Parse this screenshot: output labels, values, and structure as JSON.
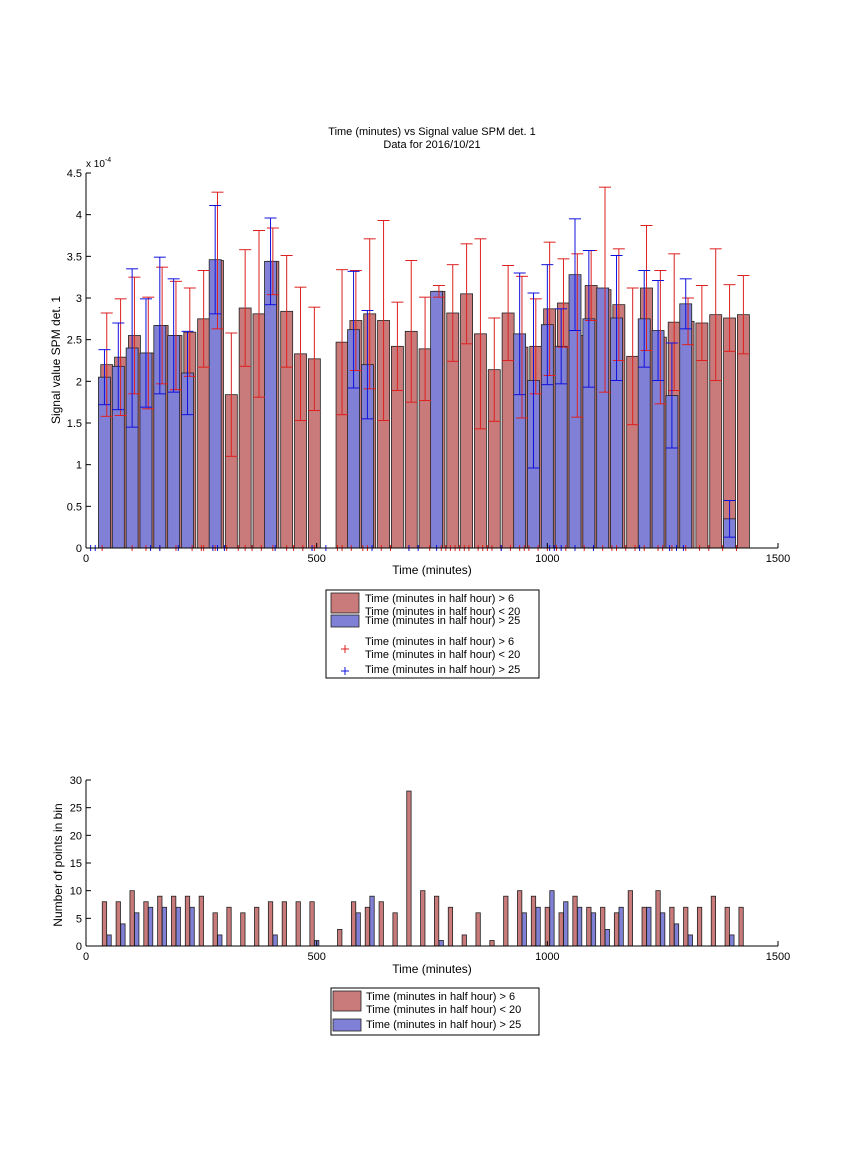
{
  "colors": {
    "red": "#c97a7a",
    "blue": "#8080d6",
    "red_err": "#dd2020",
    "blue_err": "#1010dd"
  },
  "chart_data": [
    {
      "type": "bar",
      "title": "Time (minutes) vs Signal value SPM det. 1",
      "subtitle": "Data for 2016/10/21",
      "xlabel": "Time (minutes)",
      "ylabel": "Signal value SPM det. 1",
      "exponent_label": "x 10",
      "exponent_power": "-4",
      "xlim": [
        0,
        1500
      ],
      "ylim": [
        0,
        4.5
      ],
      "y_scale_factor": 0.0001,
      "xticks": [
        "0",
        "500",
        "1000",
        "1500"
      ],
      "yticks": [
        "0",
        "0.5",
        "1",
        "1.5",
        "2",
        "2.5",
        "3",
        "3.5",
        "4",
        "4.5"
      ],
      "series": [
        {
          "name": "Time (minutes in half hour) > 6 Time (minutes in half hour) < 20",
          "color": "#c97a7a",
          "bars": [
            {
              "x": 45,
              "y": 2.2,
              "err": 0.62
            },
            {
              "x": 75,
              "y": 2.29,
              "err": 0.7
            },
            {
              "x": 105,
              "y": 2.55,
              "err": 0.7
            },
            {
              "x": 135,
              "y": 2.34,
              "err": 0.67
            },
            {
              "x": 165,
              "y": 2.67,
              "err": 0.7
            },
            {
              "x": 195,
              "y": 2.55,
              "err": 0.65
            },
            {
              "x": 225,
              "y": 2.59,
              "err": 0.53
            },
            {
              "x": 255,
              "y": 2.75,
              "err": 0.58
            },
            {
              "x": 285,
              "y": 3.45,
              "err": 0.82
            },
            {
              "x": 315,
              "y": 1.84,
              "err": 0.74
            },
            {
              "x": 345,
              "y": 2.88,
              "err": 0.7
            },
            {
              "x": 375,
              "y": 2.81,
              "err": 1.0
            },
            {
              "x": 405,
              "y": 3.44,
              "err": 0.4
            },
            {
              "x": 435,
              "y": 2.84,
              "err": 0.67
            },
            {
              "x": 465,
              "y": 2.33,
              "err": 0.8
            },
            {
              "x": 495,
              "y": 2.27,
              "err": 0.62
            },
            {
              "x": 555,
              "y": 2.47,
              "err": 0.87
            },
            {
              "x": 585,
              "y": 2.73,
              "err": 0.6
            },
            {
              "x": 615,
              "y": 2.81,
              "err": 0.9
            },
            {
              "x": 645,
              "y": 2.73,
              "err": 1.2
            },
            {
              "x": 675,
              "y": 2.42,
              "err": 0.53
            },
            {
              "x": 705,
              "y": 2.6,
              "err": 0.85
            },
            {
              "x": 735,
              "y": 2.39,
              "err": 0.62
            },
            {
              "x": 765,
              "y": 3.08,
              "err": 0.07
            },
            {
              "x": 795,
              "y": 2.82,
              "err": 0.58
            },
            {
              "x": 825,
              "y": 3.05,
              "err": 0.6
            },
            {
              "x": 855,
              "y": 2.57,
              "err": 1.14
            },
            {
              "x": 885,
              "y": 2.14,
              "err": 0.62
            },
            {
              "x": 915,
              "y": 2.82,
              "err": 0.57
            },
            {
              "x": 945,
              "y": 2.41,
              "err": 0.85
            },
            {
              "x": 975,
              "y": 2.42,
              "err": 0.57
            },
            {
              "x": 1005,
              "y": 2.87,
              "err": 0.8
            },
            {
              "x": 1035,
              "y": 2.94,
              "err": 0.53
            },
            {
              "x": 1065,
              "y": 2.55,
              "err": 0.98
            },
            {
              "x": 1095,
              "y": 3.15,
              "err": 0.42
            },
            {
              "x": 1125,
              "y": 3.1,
              "err": 1.23
            },
            {
              "x": 1155,
              "y": 2.92,
              "err": 0.67
            },
            {
              "x": 1185,
              "y": 2.3,
              "err": 0.82
            },
            {
              "x": 1215,
              "y": 3.12,
              "err": 0.75
            },
            {
              "x": 1245,
              "y": 2.53,
              "err": 0.8
            },
            {
              "x": 1275,
              "y": 2.71,
              "err": 0.82
            },
            {
              "x": 1305,
              "y": 2.72,
              "err": 0.28
            },
            {
              "x": 1335,
              "y": 2.7,
              "err": 0.45
            },
            {
              "x": 1365,
              "y": 2.8,
              "err": 0.79
            },
            {
              "x": 1395,
              "y": 2.76,
              "err": 0.4
            },
            {
              "x": 1425,
              "y": 2.8,
              "err": 0.47
            }
          ]
        },
        {
          "name": "Time (minutes in half hour) > 25",
          "color": "#8080d6",
          "bars": [
            {
              "x": 40,
              "y": 2.05,
              "err": 0.33
            },
            {
              "x": 70,
              "y": 2.18,
              "err": 0.52
            },
            {
              "x": 100,
              "y": 2.4,
              "err": 0.95
            },
            {
              "x": 130,
              "y": 2.34,
              "err": 0.65
            },
            {
              "x": 160,
              "y": 2.67,
              "err": 0.82
            },
            {
              "x": 190,
              "y": 2.55,
              "err": 0.68
            },
            {
              "x": 220,
              "y": 2.1,
              "err": 0.5
            },
            {
              "x": 280,
              "y": 3.46,
              "err": 0.65
            },
            {
              "x": 400,
              "y": 3.44,
              "err": 0.52
            },
            {
              "x": 580,
              "y": 2.62,
              "err": 0.7
            },
            {
              "x": 610,
              "y": 2.2,
              "err": 0.65
            },
            {
              "x": 760,
              "y": 3.08,
              "err": 0.0
            },
            {
              "x": 940,
              "y": 2.57,
              "err": 0.73
            },
            {
              "x": 970,
              "y": 2.01,
              "err": 1.05
            },
            {
              "x": 1000,
              "y": 2.68,
              "err": 0.72
            },
            {
              "x": 1030,
              "y": 2.42,
              "err": 0.45
            },
            {
              "x": 1060,
              "y": 3.28,
              "err": 0.67
            },
            {
              "x": 1090,
              "y": 2.75,
              "err": 0.82
            },
            {
              "x": 1120,
              "y": 3.12,
              "err": 0.0
            },
            {
              "x": 1150,
              "y": 2.76,
              "err": 0.75
            },
            {
              "x": 1210,
              "y": 2.75,
              "err": 0.58
            },
            {
              "x": 1240,
              "y": 2.61,
              "err": 0.6
            },
            {
              "x": 1270,
              "y": 1.83,
              "err": 0.63
            },
            {
              "x": 1300,
              "y": 2.93,
              "err": 0.3
            },
            {
              "x": 1395,
              "y": 0.35,
              "err": 0.22
            }
          ]
        }
      ],
      "rug": {
        "red": [
          35,
          100,
          130,
          160,
          195,
          230,
          250,
          255,
          280,
          305,
          330,
          345,
          360,
          380,
          405,
          435,
          450,
          470,
          495,
          545,
          555,
          575,
          600,
          610,
          640,
          660,
          700,
          745,
          770,
          780,
          790,
          800,
          810,
          820,
          830,
          850,
          860,
          870,
          880,
          900,
          920,
          940,
          950,
          960,
          980,
          1000,
          1020,
          1040,
          1060,
          1080,
          1100,
          1120,
          1140,
          1150,
          1170,
          1190,
          1210,
          1240,
          1250,
          1270,
          1300,
          1330,
          1350,
          1380,
          1410
        ],
        "blue": [
          10,
          20,
          140,
          160,
          200,
          275,
          285,
          300,
          410,
          490,
          520,
          620,
          700,
          720,
          760,
          900,
          1005,
          1015,
          1030,
          1060,
          1100,
          1200,
          1265,
          1280,
          1295
        ]
      },
      "legend": [
        {
          "label": "Time (minutes in half hour) > 6",
          "label2": "Time (minutes in half hour) < 20",
          "kind": "patch",
          "color": "#c97a7a"
        },
        {
          "label": "Time (minutes in half hour) > 25",
          "kind": "patch",
          "color": "#8080d6"
        },
        {
          "label": "Time (minutes in half hour) > 6",
          "label2": "Time (minutes in half hour) < 20",
          "kind": "marker",
          "color": "#dd2020"
        },
        {
          "label": "Time (minutes in half hour) > 25",
          "kind": "marker",
          "color": "#1010dd"
        }
      ]
    },
    {
      "type": "bar",
      "xlabel": "Time (minutes)",
      "ylabel": "Number of points in bin",
      "xlim": [
        0,
        1500
      ],
      "ylim": [
        0,
        30
      ],
      "xticks": [
        "0",
        "500",
        "1000",
        "1500"
      ],
      "yticks": [
        "0",
        "5",
        "10",
        "15",
        "20",
        "25",
        "30"
      ],
      "series": [
        {
          "name": "Time (minutes in half hour) > 6 Time (minutes in half hour) < 20",
          "color": "#c97a7a",
          "bars": [
            {
              "x": 40,
              "y": 8
            },
            {
              "x": 70,
              "y": 8
            },
            {
              "x": 100,
              "y": 10
            },
            {
              "x": 130,
              "y": 8
            },
            {
              "x": 160,
              "y": 9
            },
            {
              "x": 190,
              "y": 9
            },
            {
              "x": 220,
              "y": 9
            },
            {
              "x": 250,
              "y": 9
            },
            {
              "x": 280,
              "y": 6
            },
            {
              "x": 310,
              "y": 7
            },
            {
              "x": 340,
              "y": 6
            },
            {
              "x": 370,
              "y": 7
            },
            {
              "x": 400,
              "y": 8
            },
            {
              "x": 430,
              "y": 8
            },
            {
              "x": 460,
              "y": 8
            },
            {
              "x": 490,
              "y": 8
            },
            {
              "x": 550,
              "y": 3
            },
            {
              "x": 580,
              "y": 8
            },
            {
              "x": 610,
              "y": 7
            },
            {
              "x": 640,
              "y": 8
            },
            {
              "x": 670,
              "y": 6
            },
            {
              "x": 700,
              "y": 28
            },
            {
              "x": 730,
              "y": 10
            },
            {
              "x": 760,
              "y": 9
            },
            {
              "x": 790,
              "y": 7
            },
            {
              "x": 820,
              "y": 2
            },
            {
              "x": 850,
              "y": 6
            },
            {
              "x": 880,
              "y": 1
            },
            {
              "x": 910,
              "y": 9
            },
            {
              "x": 940,
              "y": 10
            },
            {
              "x": 970,
              "y": 9
            },
            {
              "x": 1000,
              "y": 7
            },
            {
              "x": 1030,
              "y": 6
            },
            {
              "x": 1060,
              "y": 9
            },
            {
              "x": 1090,
              "y": 7
            },
            {
              "x": 1120,
              "y": 7
            },
            {
              "x": 1150,
              "y": 6
            },
            {
              "x": 1180,
              "y": 10
            },
            {
              "x": 1210,
              "y": 7
            },
            {
              "x": 1240,
              "y": 10
            },
            {
              "x": 1270,
              "y": 7
            },
            {
              "x": 1300,
              "y": 7
            },
            {
              "x": 1330,
              "y": 7
            },
            {
              "x": 1360,
              "y": 9
            },
            {
              "x": 1390,
              "y": 7
            },
            {
              "x": 1420,
              "y": 7
            }
          ]
        },
        {
          "name": "Time (minutes in half hour) > 25",
          "color": "#8080d6",
          "bars": [
            {
              "x": 50,
              "y": 2
            },
            {
              "x": 80,
              "y": 4
            },
            {
              "x": 110,
              "y": 6
            },
            {
              "x": 140,
              "y": 7
            },
            {
              "x": 170,
              "y": 7
            },
            {
              "x": 200,
              "y": 7
            },
            {
              "x": 230,
              "y": 7
            },
            {
              "x": 290,
              "y": 2
            },
            {
              "x": 410,
              "y": 2
            },
            {
              "x": 500,
              "y": 1
            },
            {
              "x": 590,
              "y": 6
            },
            {
              "x": 620,
              "y": 9
            },
            {
              "x": 770,
              "y": 1
            },
            {
              "x": 950,
              "y": 6
            },
            {
              "x": 980,
              "y": 7
            },
            {
              "x": 1010,
              "y": 10
            },
            {
              "x": 1040,
              "y": 8
            },
            {
              "x": 1070,
              "y": 7
            },
            {
              "x": 1100,
              "y": 6
            },
            {
              "x": 1130,
              "y": 3
            },
            {
              "x": 1160,
              "y": 7
            },
            {
              "x": 1220,
              "y": 7
            },
            {
              "x": 1250,
              "y": 6
            },
            {
              "x": 1280,
              "y": 4
            },
            {
              "x": 1310,
              "y": 2
            },
            {
              "x": 1400,
              "y": 2
            }
          ]
        }
      ],
      "legend": [
        {
          "label": "Time (minutes in half hour) > 6",
          "label2": "Time (minutes in half hour) < 20",
          "kind": "patch",
          "color": "#c97a7a"
        },
        {
          "label": "Time (minutes in half hour) > 25",
          "kind": "patch",
          "color": "#8080d6"
        }
      ]
    }
  ]
}
